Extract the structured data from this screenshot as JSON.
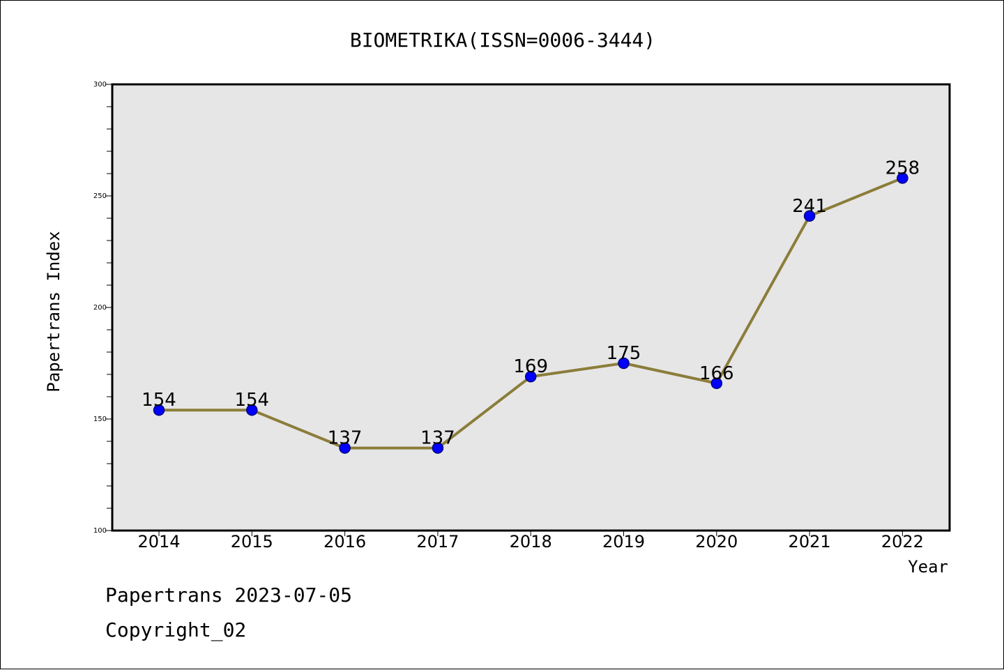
{
  "chart_data": {
    "type": "line",
    "title": "BIOMETRIKA(ISSN=0006-3444)",
    "xlabel": "Year",
    "ylabel": "Papertrans Index",
    "categories": [
      "2014",
      "2015",
      "2016",
      "2017",
      "2018",
      "2019",
      "2020",
      "2021",
      "2022"
    ],
    "series": [
      {
        "values": [
          154,
          154,
          137,
          137,
          169,
          175,
          166,
          241,
          258
        ]
      }
    ],
    "data_labels": [
      "154",
      "154",
      "137",
      "137",
      "169",
      "175",
      "166",
      "241",
      "258"
    ],
    "ylim": [
      100,
      300
    ],
    "yticks": [
      "100",
      "150",
      "200",
      "250",
      "300"
    ],
    "grid": false,
    "legend": "none",
    "colors": {
      "plot_background": "#e6e6e6",
      "line": "#8b7d3a",
      "marker": "#0000ff",
      "marker_edge": "#000080"
    }
  },
  "footer": {
    "line1": "Papertrans 2023-07-05",
    "line2": "Copyright_02"
  }
}
